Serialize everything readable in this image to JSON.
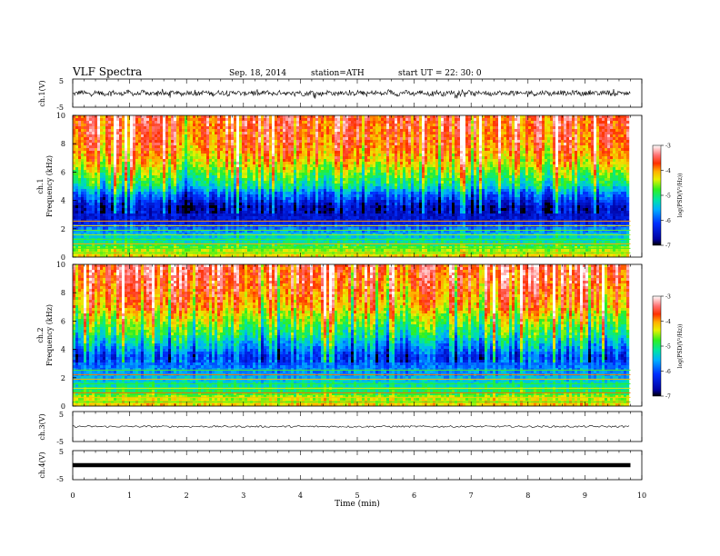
{
  "header": {
    "title": "VLF  Spectra",
    "date": "Sep. 18, 2014",
    "station": "station=ATH",
    "start": "start  UT  =   22: 30: 0"
  },
  "chart_data": [
    {
      "type": "line",
      "name": "ch1-waveform",
      "ylabel": "ch.1(V)",
      "ylim": [
        -5,
        5
      ],
      "yticks": [
        "5",
        "-5"
      ],
      "xlim": [
        0,
        10
      ],
      "data_extent_min": 9.8,
      "amplitude_range": [
        -2,
        1.5
      ],
      "color": "#000000"
    },
    {
      "type": "heatmap",
      "name": "ch1-spectrogram",
      "ylabel_channel": "ch.1",
      "ylabel": "Frequency  (kHz)",
      "ylim": [
        0,
        10
      ],
      "yticks": [
        "0",
        "2",
        "4",
        "6",
        "8",
        "10"
      ],
      "xlim": [
        0,
        10
      ],
      "data_extent_min": 9.8,
      "colorbar": {
        "label": "log(PSD(V²/Hz))",
        "range": [
          -7,
          -3
        ],
        "ticks": [
          "-3",
          "-4",
          "-5",
          "-6",
          "-7"
        ]
      },
      "log_psd_profile": [
        {
          "f_khz": 0.2,
          "value": -4.3
        },
        {
          "f_khz": 0.6,
          "value": -4.6
        },
        {
          "f_khz": 1.0,
          "value": -5.1
        },
        {
          "f_khz": 1.5,
          "value": -5.4
        },
        {
          "f_khz": 2.0,
          "value": -5.8
        },
        {
          "f_khz": 2.5,
          "value": -6.4
        },
        {
          "f_khz": 3.0,
          "value": -6.5
        },
        {
          "f_khz": 3.5,
          "value": -6.6
        },
        {
          "f_khz": 4.0,
          "value": -6.2
        },
        {
          "f_khz": 4.5,
          "value": -5.8
        },
        {
          "f_khz": 5.0,
          "value": -5.2
        },
        {
          "f_khz": 5.5,
          "value": -4.9
        },
        {
          "f_khz": 6.0,
          "value": -4.6
        },
        {
          "f_khz": 6.5,
          "value": -4.3
        },
        {
          "f_khz": 7.0,
          "value": -4.1
        },
        {
          "f_khz": 8.0,
          "value": -3.8
        },
        {
          "f_khz": 9.0,
          "value": -3.7
        },
        {
          "f_khz": 10.0,
          "value": -3.6
        }
      ]
    },
    {
      "type": "heatmap",
      "name": "ch2-spectrogram",
      "ylabel_channel": "ch.2",
      "ylabel": "Frequency  (kHz)",
      "ylim": [
        0,
        10
      ],
      "yticks": [
        "0",
        "2",
        "4",
        "6",
        "8",
        "10"
      ],
      "xlim": [
        0,
        10
      ],
      "data_extent_min": 9.8,
      "colorbar": {
        "label": "log(PSD(V²/Hz))",
        "range": [
          -7,
          -3
        ],
        "ticks": [
          "-3",
          "-4",
          "-5",
          "-6",
          "-7"
        ]
      },
      "log_psd_profile": [
        {
          "f_khz": 0.2,
          "value": -4.2
        },
        {
          "f_khz": 0.6,
          "value": -4.5
        },
        {
          "f_khz": 1.0,
          "value": -4.9
        },
        {
          "f_khz": 1.5,
          "value": -5.2
        },
        {
          "f_khz": 2.0,
          "value": -5.5
        },
        {
          "f_khz": 2.5,
          "value": -5.7
        },
        {
          "f_khz": 3.0,
          "value": -5.9
        },
        {
          "f_khz": 3.5,
          "value": -6.1
        },
        {
          "f_khz": 4.0,
          "value": -5.7
        },
        {
          "f_khz": 4.5,
          "value": -5.4
        },
        {
          "f_khz": 5.0,
          "value": -5.0
        },
        {
          "f_khz": 5.5,
          "value": -4.8
        },
        {
          "f_khz": 6.0,
          "value": -4.5
        },
        {
          "f_khz": 6.5,
          "value": -4.3
        },
        {
          "f_khz": 7.0,
          "value": -4.0
        },
        {
          "f_khz": 8.0,
          "value": -3.8
        },
        {
          "f_khz": 9.0,
          "value": -3.6
        },
        {
          "f_khz": 10.0,
          "value": -3.5
        }
      ]
    },
    {
      "type": "line",
      "name": "ch3-waveform",
      "ylabel": "ch.3(V)",
      "ylim": [
        -5,
        5
      ],
      "yticks": [
        "5",
        "-5"
      ],
      "xlim": [
        0,
        10
      ],
      "data_extent_min": 9.8,
      "amplitude_range": [
        -0.3,
        0.3
      ],
      "color": "#000000"
    },
    {
      "type": "line",
      "name": "ch4-waveform",
      "ylabel": "ch.4(V)",
      "ylim": [
        -5,
        5
      ],
      "yticks": [
        "5",
        "-5"
      ],
      "xlim": [
        0,
        10
      ],
      "data_extent_min": 9.8,
      "constant_level": 0,
      "color": "#000000"
    }
  ],
  "xaxis": {
    "label": "Time  (min)",
    "ticks": [
      "0",
      "1",
      "2",
      "3",
      "4",
      "5",
      "6",
      "7",
      "8",
      "9",
      "10"
    ]
  }
}
